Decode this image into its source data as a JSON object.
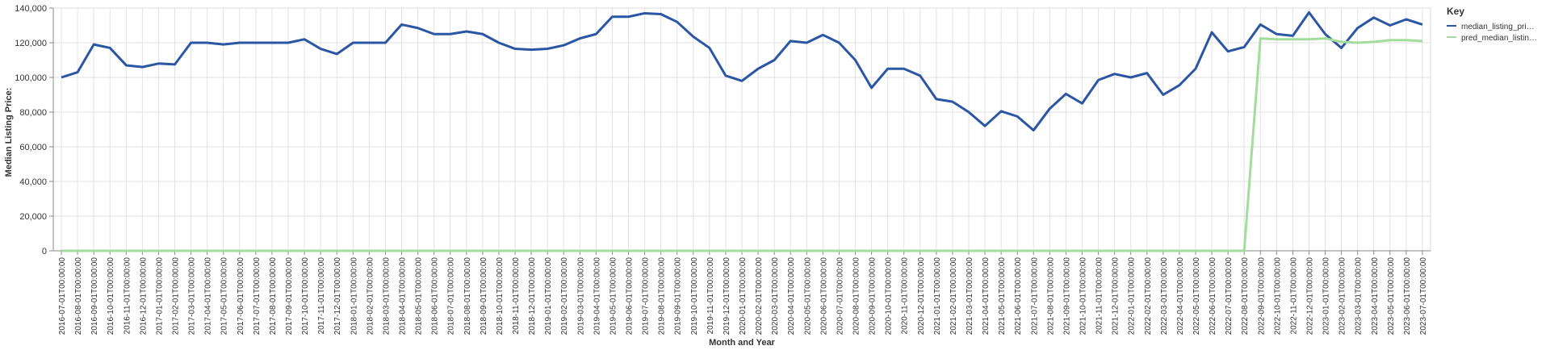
{
  "chart_data": {
    "type": "line",
    "x_label": "Month and Year",
    "y_label": "Median Listing Price:",
    "legend_title": "Key",
    "legend_position": "right",
    "grid": true,
    "categories": [
      "2016-07-01T00:00:00",
      "2016-08-01T00:00:00",
      "2016-09-01T00:00:00",
      "2016-10-01T00:00:00",
      "2016-11-01T00:00:00",
      "2016-12-01T00:00:00",
      "2017-01-01T00:00:00",
      "2017-02-01T00:00:00",
      "2017-03-01T00:00:00",
      "2017-04-01T00:00:00",
      "2017-05-01T00:00:00",
      "2017-06-01T00:00:00",
      "2017-07-01T00:00:00",
      "2017-08-01T00:00:00",
      "2017-09-01T00:00:00",
      "2017-10-01T00:00:00",
      "2017-11-01T00:00:00",
      "2017-12-01T00:00:00",
      "2018-01-01T00:00:00",
      "2018-02-01T00:00:00",
      "2018-03-01T00:00:00",
      "2018-04-01T00:00:00",
      "2018-05-01T00:00:00",
      "2018-06-01T00:00:00",
      "2018-07-01T00:00:00",
      "2018-08-01T00:00:00",
      "2018-09-01T00:00:00",
      "2018-10-01T00:00:00",
      "2018-11-01T00:00:00",
      "2018-12-01T00:00:00",
      "2019-01-01T00:00:00",
      "2019-02-01T00:00:00",
      "2019-03-01T00:00:00",
      "2019-04-01T00:00:00",
      "2019-05-01T00:00:00",
      "2019-06-01T00:00:00",
      "2019-07-01T00:00:00",
      "2019-08-01T00:00:00",
      "2019-09-01T00:00:00",
      "2019-10-01T00:00:00",
      "2019-11-01T00:00:00",
      "2019-12-01T00:00:00",
      "2020-01-01T00:00:00",
      "2020-02-01T00:00:00",
      "2020-03-01T00:00:00",
      "2020-04-01T00:00:00",
      "2020-05-01T00:00:00",
      "2020-06-01T00:00:00",
      "2020-07-01T00:00:00",
      "2020-08-01T00:00:00",
      "2020-09-01T00:00:00",
      "2020-10-01T00:00:00",
      "2020-11-01T00:00:00",
      "2020-12-01T00:00:00",
      "2021-01-01T00:00:00",
      "2021-02-01T00:00:00",
      "2021-03-01T00:00:00",
      "2021-04-01T00:00:00",
      "2021-05-01T00:00:00",
      "2021-06-01T00:00:00",
      "2021-07-01T00:00:00",
      "2021-08-01T00:00:00",
      "2021-09-01T00:00:00",
      "2021-10-01T00:00:00",
      "2021-11-01T00:00:00",
      "2021-12-01T00:00:00",
      "2022-01-01T00:00:00",
      "2022-02-01T00:00:00",
      "2022-03-01T00:00:00",
      "2022-04-01T00:00:00",
      "2022-05-01T00:00:00",
      "2022-06-01T00:00:00",
      "2022-07-01T00:00:00",
      "2022-08-01T00:00:00",
      "2022-09-01T00:00:00",
      "2022-10-01T00:00:00",
      "2022-11-01T00:00:00",
      "2022-12-01T00:00:00",
      "2023-01-01T00:00:00",
      "2023-02-01T00:00:00",
      "2023-03-01T00:00:00",
      "2023-04-01T00:00:00",
      "2023-05-01T00:00:00",
      "2023-06-01T00:00:00",
      "2023-07-01T00:00:00"
    ],
    "series": [
      {
        "name": "median_listing_pri…",
        "color": "#2b56a3",
        "values": [
          100000,
          103000,
          119000,
          117000,
          107000,
          106000,
          108000,
          107500,
          120000,
          120000,
          119000,
          120000,
          120000,
          120000,
          120000,
          122000,
          116500,
          113500,
          120000,
          120000,
          120000,
          130500,
          128500,
          125000,
          125000,
          126500,
          125000,
          120000,
          116500,
          116000,
          116500,
          118500,
          122500,
          125000,
          135000,
          135000,
          137000,
          136500,
          132000,
          123500,
          117000,
          101000,
          98000,
          105000,
          110000,
          121000,
          120000,
          124500,
          120000,
          110000,
          94000,
          105000,
          105000,
          101000,
          87500,
          86000,
          80000,
          72000,
          80500,
          77500,
          69500,
          82000,
          90500,
          85000,
          98500,
          102000,
          100000,
          102500,
          90000,
          95500,
          105000,
          126000,
          115000,
          117500,
          130500,
          125000,
          124000,
          137500,
          125000,
          117000,
          128500,
          134500,
          130000,
          133500,
          130500
        ]
      },
      {
        "name": "pred_median_listin…",
        "color": "#a3dc9c",
        "values": [
          0,
          0,
          0,
          0,
          0,
          0,
          0,
          0,
          0,
          0,
          0,
          0,
          0,
          0,
          0,
          0,
          0,
          0,
          0,
          0,
          0,
          0,
          0,
          0,
          0,
          0,
          0,
          0,
          0,
          0,
          0,
          0,
          0,
          0,
          0,
          0,
          0,
          0,
          0,
          0,
          0,
          0,
          0,
          0,
          0,
          0,
          0,
          0,
          0,
          0,
          0,
          0,
          0,
          0,
          0,
          0,
          0,
          0,
          0,
          0,
          0,
          0,
          0,
          0,
          0,
          0,
          0,
          0,
          0,
          0,
          0,
          0,
          0,
          0,
          122500,
          122000,
          122000,
          122000,
          122500,
          120500,
          120000,
          120500,
          121500,
          121500,
          121000
        ]
      }
    ],
    "ylim": [
      0,
      140000
    ],
    "yticks": [
      0,
      {
        "value": 20000,
        "label": "20,000"
      },
      {
        "value": 40000,
        "label": "40,000"
      },
      {
        "value": 60000,
        "label": "60,000"
      },
      {
        "value": 80000,
        "label": "80,000"
      },
      {
        "value": 100000,
        "label": "100,000"
      },
      {
        "value": 120000,
        "label": "120,000"
      },
      {
        "value": 140000,
        "label": "140,000"
      }
    ]
  }
}
